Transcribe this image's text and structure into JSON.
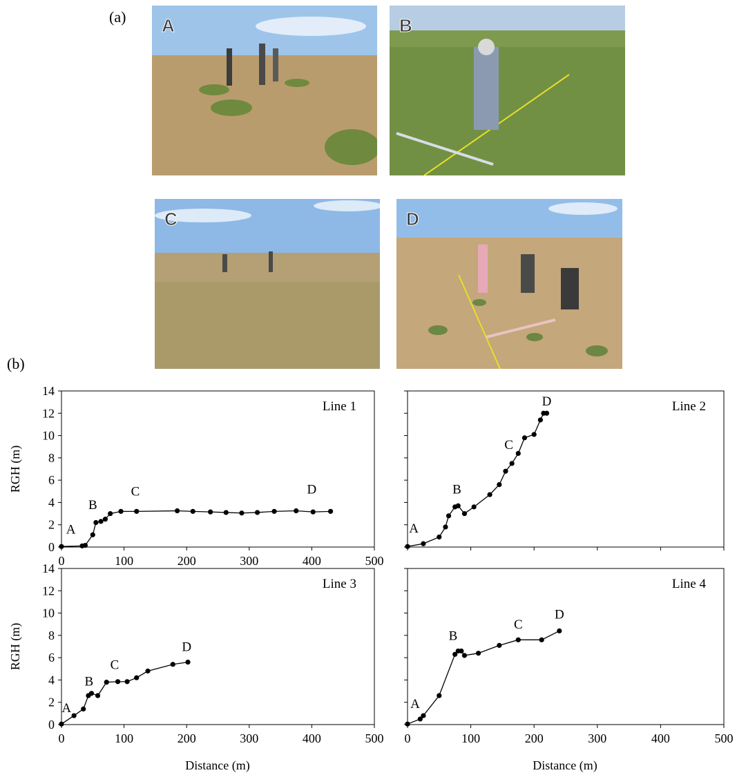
{
  "figure": {
    "panel_a_label": "(a)",
    "panel_b_label": "(b)"
  },
  "photos": [
    {
      "letter": "A",
      "sky": "#9ec4ea",
      "ground": "#b99c6e",
      "veg": "#6f8a3e"
    },
    {
      "letter": "B",
      "sky": "#b7cde3",
      "ground": "#7d9a4e",
      "veg": "#5f7d36"
    },
    {
      "letter": "C",
      "sky": "#8eb8e6",
      "ground": "#b4a074",
      "veg": "#7d8b4a"
    },
    {
      "letter": "D",
      "sky": "#93bde9",
      "ground": "#c4a77a",
      "veg": "#6b8743"
    }
  ],
  "chart_data": [
    {
      "type": "line",
      "title": "Line 1",
      "xlabel": "",
      "ylabel": "RGH (m)",
      "xlim": [
        0,
        500
      ],
      "ylim": [
        0,
        14
      ],
      "xticks": [
        "0",
        "100",
        "200",
        "300",
        "400",
        "500"
      ],
      "yticks": [
        "0",
        "2",
        "4",
        "6",
        "8",
        "10",
        "12",
        "14"
      ],
      "x": [
        0,
        33,
        38,
        50,
        55,
        63,
        70,
        78,
        95,
        120,
        185,
        210,
        238,
        263,
        288,
        313,
        340,
        375,
        402,
        430
      ],
      "y": [
        0.05,
        0.1,
        0.15,
        1.1,
        2.2,
        2.3,
        2.5,
        3.0,
        3.2,
        3.2,
        3.25,
        3.2,
        3.15,
        3.1,
        3.05,
        3.1,
        3.2,
        3.25,
        3.15,
        3.2
      ],
      "annotations": [
        {
          "text": "A",
          "x": 15,
          "y": 1.2
        },
        {
          "text": "B",
          "x": 50,
          "y": 3.4
        },
        {
          "text": "C",
          "x": 118,
          "y": 4.6
        },
        {
          "text": "D",
          "x": 400,
          "y": 4.8
        }
      ]
    },
    {
      "type": "line",
      "title": "Line 2",
      "xlabel": "",
      "ylabel": "",
      "xlim": [
        0,
        500
      ],
      "ylim": [
        0,
        14
      ],
      "xticks": [],
      "yticks": [],
      "x": [
        0,
        25,
        50,
        60,
        65,
        75,
        80,
        90,
        105,
        130,
        145,
        155,
        165,
        175,
        185,
        200,
        210,
        215,
        220
      ],
      "y": [
        0.05,
        0.3,
        0.9,
        1.8,
        2.8,
        3.6,
        3.7,
        3.0,
        3.6,
        4.7,
        5.6,
        6.8,
        7.5,
        8.4,
        9.8,
        10.1,
        11.4,
        12.0,
        12.0
      ],
      "annotations": [
        {
          "text": "A",
          "x": 10,
          "y": 1.3
        },
        {
          "text": "B",
          "x": 78,
          "y": 4.8
        },
        {
          "text": "C",
          "x": 160,
          "y": 8.8
        },
        {
          "text": "D",
          "x": 220,
          "y": 12.7
        }
      ]
    },
    {
      "type": "line",
      "title": "Line 3",
      "xlabel": "",
      "ylabel": "RGH (m)",
      "xlim": [
        0,
        500
      ],
      "ylim": [
        0,
        14
      ],
      "xticks": [
        "0",
        "100",
        "200",
        "300",
        "400",
        "500"
      ],
      "yticks": [
        "0",
        "2",
        "4",
        "6",
        "8",
        "10",
        "12",
        "14"
      ],
      "x": [
        0,
        20,
        35,
        43,
        48,
        58,
        72,
        90,
        105,
        120,
        138,
        178,
        202
      ],
      "y": [
        0.05,
        0.8,
        1.4,
        2.6,
        2.8,
        2.6,
        3.8,
        3.85,
        3.85,
        4.2,
        4.8,
        5.4,
        5.6
      ],
      "annotations": [
        {
          "text": "A",
          "x": 8,
          "y": 1.1
        },
        {
          "text": "B",
          "x": 44,
          "y": 3.5
        },
        {
          "text": "C",
          "x": 85,
          "y": 5.0
        },
        {
          "text": "D",
          "x": 200,
          "y": 6.6
        }
      ]
    },
    {
      "type": "line",
      "title": "Line 4",
      "xlabel": "",
      "ylabel": "",
      "xlim": [
        0,
        500
      ],
      "ylim": [
        0,
        14
      ],
      "xticks": [
        "0",
        "100",
        "200",
        "300",
        "400",
        "500"
      ],
      "yticks": [],
      "x": [
        0,
        20,
        25,
        50,
        75,
        80,
        85,
        90,
        112,
        145,
        175,
        212,
        240
      ],
      "y": [
        0.05,
        0.5,
        0.8,
        2.6,
        6.3,
        6.6,
        6.6,
        6.2,
        6.4,
        7.1,
        7.6,
        7.6,
        8.4
      ],
      "annotations": [
        {
          "text": "A",
          "x": 12,
          "y": 1.5
        },
        {
          "text": "B",
          "x": 72,
          "y": 7.6
        },
        {
          "text": "C",
          "x": 175,
          "y": 8.6
        },
        {
          "text": "D",
          "x": 240,
          "y": 9.5
        }
      ]
    }
  ],
  "axis_titles": {
    "ylabel_top": "RGH (m)",
    "ylabel_bottom": "RGH (m)",
    "xlabel_left": "Distance (m)",
    "xlabel_right": "Distance (m)"
  }
}
